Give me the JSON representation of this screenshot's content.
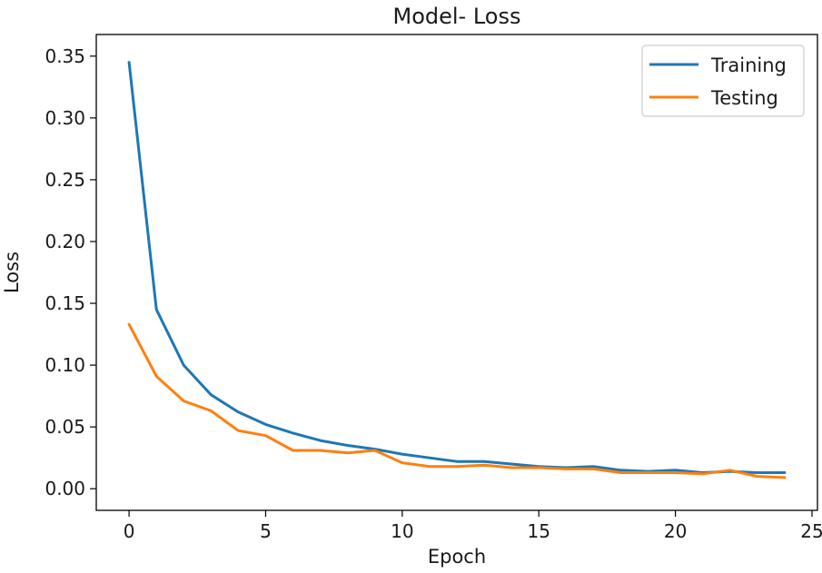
{
  "chart_data": {
    "type": "line",
    "title": "Model- Loss",
    "xlabel": "Epoch",
    "ylabel": "Loss",
    "xlim": [
      -1.2,
      25.2
    ],
    "ylim": [
      -0.0175,
      0.3675
    ],
    "xticks": [
      0,
      5,
      10,
      15,
      20,
      25
    ],
    "yticks": [
      0.0,
      0.05,
      0.1,
      0.15,
      0.2,
      0.25,
      0.3,
      0.35
    ],
    "ytick_labels": [
      "0.00",
      "0.05",
      "0.10",
      "0.15",
      "0.20",
      "0.25",
      "0.30",
      "0.35"
    ],
    "grid": false,
    "legend_position": "top-right",
    "x": [
      0,
      1,
      2,
      3,
      4,
      5,
      6,
      7,
      8,
      9,
      10,
      11,
      12,
      13,
      14,
      15,
      16,
      17,
      18,
      19,
      20,
      21,
      22,
      23,
      24
    ],
    "series": [
      {
        "name": "Training",
        "color": "#1f77b4",
        "values": [
          0.345,
          0.145,
          0.1,
          0.076,
          0.062,
          0.052,
          0.045,
          0.039,
          0.035,
          0.032,
          0.028,
          0.025,
          0.022,
          0.022,
          0.02,
          0.018,
          0.017,
          0.018,
          0.015,
          0.014,
          0.015,
          0.013,
          0.014,
          0.013,
          0.013
        ]
      },
      {
        "name": "Testing",
        "color": "#ff7f0e",
        "values": [
          0.133,
          0.091,
          0.071,
          0.063,
          0.047,
          0.043,
          0.031,
          0.031,
          0.029,
          0.031,
          0.021,
          0.018,
          0.018,
          0.019,
          0.017,
          0.017,
          0.016,
          0.016,
          0.013,
          0.013,
          0.013,
          0.012,
          0.015,
          0.01,
          0.009
        ]
      }
    ]
  }
}
